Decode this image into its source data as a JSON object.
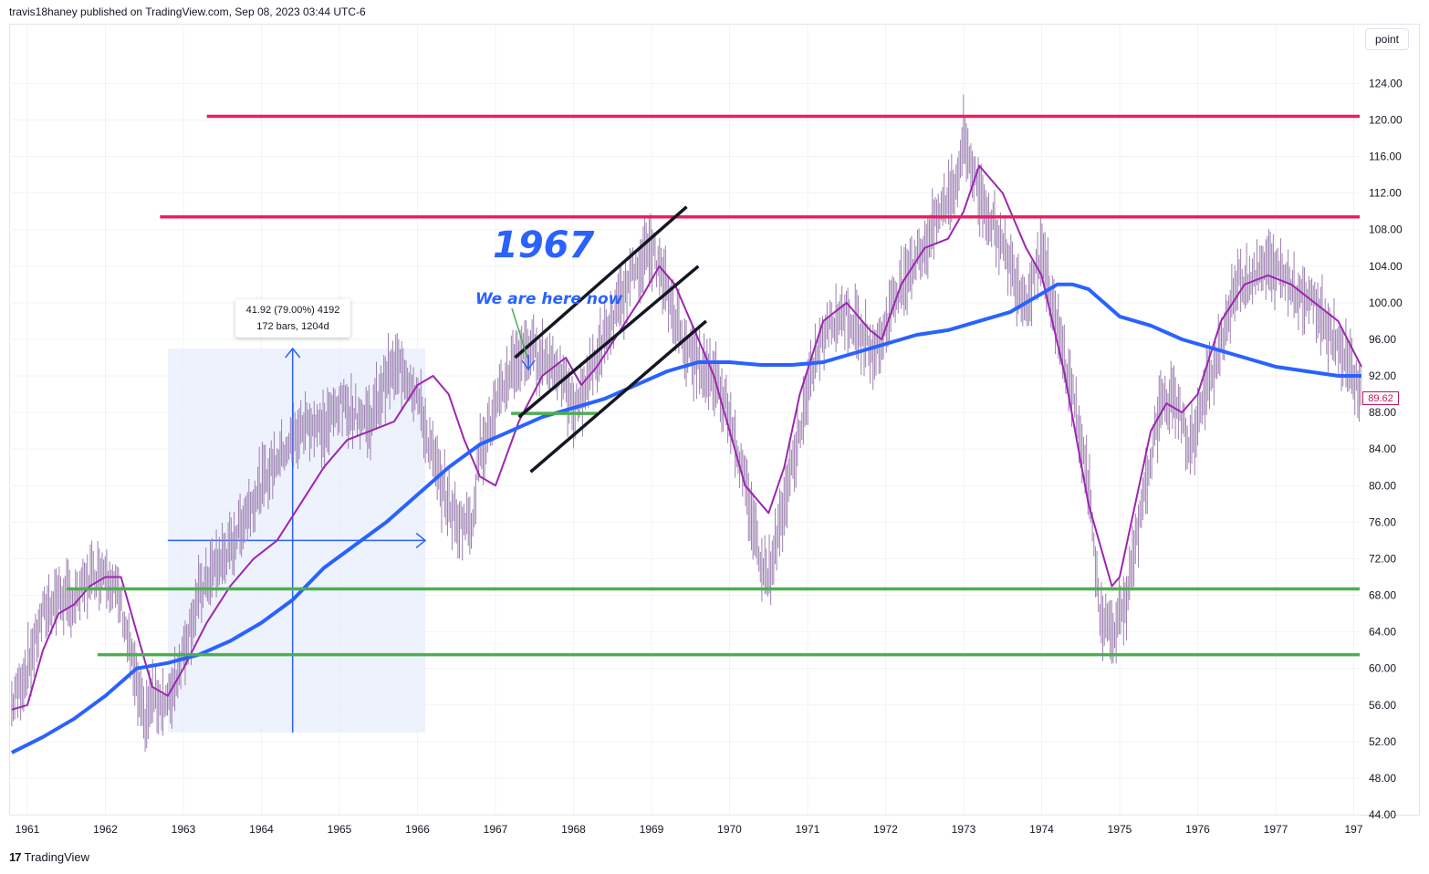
{
  "header": {
    "publisher": "travis18haney published on TradingView.com, Sep 08, 2023 03:44 UTC-6"
  },
  "toolbar": {
    "scale_mode": "point"
  },
  "footer": {
    "brand": "TradingView",
    "logo_icon": "tradingview-logo-icon"
  },
  "annotations": {
    "year_label": "1967",
    "we_are_here": "We are here now",
    "measure_line1": "41.92 (79.00%) 4192",
    "measure_line2": "172 bars, 1204d"
  },
  "last_price": "89.62",
  "colors": {
    "resistance": "#e91e63",
    "support": "#4caf50",
    "ma_long": "#2962ff",
    "ma_short": "#9c27b0",
    "price_bars": "#9c7fb0",
    "channel": "#131722",
    "measure_fill": "#e8eefc"
  },
  "chart_data": {
    "type": "line",
    "title": "",
    "xlabel": "",
    "ylabel": "",
    "x_tick_labels": [
      "1961",
      "1962",
      "1963",
      "1964",
      "1965",
      "1966",
      "1967",
      "1968",
      "1969",
      "1970",
      "1971",
      "1972",
      "1973",
      "1974",
      "1975",
      "1976",
      "1977",
      "197"
    ],
    "y_tick_labels": [
      "44.00",
      "48.00",
      "52.00",
      "56.00",
      "60.00",
      "64.00",
      "68.00",
      "72.00",
      "76.00",
      "80.00",
      "84.00",
      "88.00",
      "92.00",
      "96.00",
      "100.00",
      "104.00",
      "108.00",
      "112.00",
      "116.00",
      "120.00",
      "124.00"
    ],
    "ylim": [
      44,
      128
    ],
    "xlim": [
      1960.8,
      1978.1
    ],
    "grid": true,
    "horizontal_levels": [
      {
        "value": 120.4,
        "from": 1963.3,
        "kind": "resistance"
      },
      {
        "value": 109.4,
        "from": 1962.7,
        "kind": "resistance"
      },
      {
        "value": 68.7,
        "from": 1961.5,
        "kind": "support"
      },
      {
        "value": 61.5,
        "from": 1961.9,
        "kind": "support"
      },
      {
        "value": 87.9,
        "from": 1967.2,
        "to": 1968.3,
        "kind": "support"
      }
    ],
    "channel_lines": [
      {
        "x": [
          1967.25,
          1969.45
        ],
        "y": [
          94.0,
          110.5
        ]
      },
      {
        "x": [
          1967.3,
          1969.6
        ],
        "y": [
          87.5,
          104.0
        ]
      },
      {
        "x": [
          1967.45,
          1969.7
        ],
        "y": [
          81.5,
          98.0
        ]
      }
    ],
    "measure_rect": {
      "x": [
        1962.8,
        1966.1
      ],
      "y": [
        53.0,
        95.0
      ]
    },
    "measure_arrows": {
      "vertical": {
        "x": 1964.4,
        "y": [
          53.0,
          95.0
        ]
      },
      "horizontal": {
        "y": 74.0,
        "x": [
          1962.8,
          1966.1
        ]
      }
    },
    "series": [
      {
        "name": "",
        "kind": "price",
        "x": [
          1960.8,
          1961.0,
          1961.2,
          1961.4,
          1961.6,
          1961.8,
          1962.0,
          1962.2,
          1962.4,
          1962.5,
          1962.6,
          1962.8,
          1963.0,
          1963.2,
          1963.4,
          1963.6,
          1963.8,
          1964.0,
          1964.2,
          1964.4,
          1964.6,
          1964.8,
          1965.0,
          1965.2,
          1965.4,
          1965.6,
          1965.8,
          1966.0,
          1966.1,
          1966.3,
          1966.5,
          1966.7,
          1966.8,
          1967.0,
          1967.2,
          1967.4,
          1967.6,
          1967.8,
          1968.0,
          1968.2,
          1968.4,
          1968.6,
          1968.8,
          1969.0,
          1969.2,
          1969.4,
          1969.6,
          1969.8,
          1970.0,
          1970.2,
          1970.4,
          1970.5,
          1970.7,
          1970.9,
          1971.1,
          1971.3,
          1971.5,
          1971.7,
          1971.9,
          1972.1,
          1972.3,
          1972.5,
          1972.7,
          1972.9,
          1973.0,
          1973.2,
          1973.4,
          1973.6,
          1973.8,
          1974.0,
          1974.2,
          1974.4,
          1974.6,
          1974.75,
          1974.9,
          1975.1,
          1975.3,
          1975.5,
          1975.7,
          1975.9,
          1976.1,
          1976.3,
          1976.5,
          1976.7,
          1976.9,
          1977.1,
          1977.3,
          1977.5,
          1977.7,
          1977.9,
          1978.1
        ],
        "y": [
          56,
          60,
          66,
          68,
          67,
          70,
          71,
          67,
          58,
          54,
          57,
          56,
          62,
          68,
          71,
          73,
          77,
          80,
          83,
          85,
          87,
          86,
          89,
          88,
          87,
          92,
          93,
          90,
          86,
          80,
          76,
          76,
          84,
          88,
          93,
          95,
          94,
          93,
          88,
          92,
          96,
          100,
          104,
          106,
          101,
          96,
          93,
          92,
          88,
          80,
          72,
          70,
          78,
          86,
          94,
          98,
          99,
          96,
          95,
          100,
          104,
          106,
          110,
          113,
          118,
          112,
          108,
          104,
          100,
          106,
          97,
          90,
          80,
          66,
          64,
          68,
          78,
          88,
          90,
          84,
          90,
          96,
          102,
          103,
          104,
          103,
          101,
          100,
          97,
          94,
          90
        ]
      },
      {
        "name": "",
        "kind": "ma_short",
        "x": [
          1960.8,
          1961.0,
          1961.2,
          1961.4,
          1961.6,
          1961.8,
          1962.0,
          1962.2,
          1962.4,
          1962.6,
          1962.8,
          1963.0,
          1963.3,
          1963.6,
          1963.9,
          1964.2,
          1964.5,
          1964.8,
          1965.1,
          1965.4,
          1965.7,
          1966.0,
          1966.2,
          1966.4,
          1966.6,
          1966.8,
          1967.0,
          1967.3,
          1967.6,
          1967.9,
          1968.1,
          1968.3,
          1968.6,
          1968.9,
          1969.1,
          1969.3,
          1969.5,
          1969.8,
          1970.0,
          1970.2,
          1970.5,
          1970.7,
          1970.9,
          1971.2,
          1971.5,
          1971.8,
          1971.95,
          1972.2,
          1972.5,
          1972.8,
          1973.0,
          1973.2,
          1973.5,
          1973.8,
          1974.0,
          1974.3,
          1974.6,
          1974.9,
          1975.0,
          1975.2,
          1975.4,
          1975.6,
          1975.8,
          1976.0,
          1976.3,
          1976.6,
          1976.9,
          1977.2,
          1977.5,
          1977.8,
          1978.1
        ],
        "y": [
          55.5,
          56,
          62,
          66,
          67,
          69,
          70,
          70,
          64,
          58,
          57,
          60,
          65,
          69,
          72,
          74,
          78,
          82,
          85,
          86,
          87,
          91,
          92,
          90,
          85,
          81,
          80,
          87,
          92,
          94,
          91,
          93,
          97,
          101,
          104,
          102,
          98,
          92,
          86,
          80,
          77,
          82,
          90,
          98,
          100,
          97,
          96,
          102,
          106,
          107,
          110,
          115,
          112,
          106,
          103,
          92,
          78,
          69,
          70,
          78,
          86,
          89,
          88,
          90,
          98,
          102,
          103,
          102,
          100,
          98,
          93
        ],
        "color": "#9c27b0"
      },
      {
        "name": "",
        "kind": "ma_long",
        "x": [
          1960.8,
          1961.2,
          1961.6,
          1962.0,
          1962.4,
          1962.8,
          1963.2,
          1963.6,
          1964.0,
          1964.4,
          1964.8,
          1965.2,
          1965.6,
          1966.0,
          1966.4,
          1966.8,
          1967.2,
          1967.6,
          1968.0,
          1968.4,
          1968.8,
          1969.2,
          1969.6,
          1970.0,
          1970.4,
          1970.8,
          1971.2,
          1971.6,
          1972.0,
          1972.4,
          1972.8,
          1973.2,
          1973.6,
          1974.0,
          1974.2,
          1974.4,
          1974.6,
          1974.8,
          1975.0,
          1975.4,
          1975.8,
          1976.2,
          1976.6,
          1977.0,
          1977.4,
          1977.8,
          1978.1
        ],
        "y": [
          50.8,
          52.5,
          54.5,
          57,
          60,
          60.6,
          61.5,
          63,
          65,
          67.5,
          71,
          73.5,
          76,
          79,
          82,
          84.5,
          86,
          87.5,
          88.5,
          89.5,
          91,
          92.5,
          93.5,
          93.5,
          93.2,
          93.2,
          93.5,
          94.5,
          95.5,
          96.5,
          97,
          98,
          99,
          101,
          102,
          102,
          101.5,
          100,
          98.5,
          97.5,
          96,
          95,
          94,
          93,
          92.5,
          92,
          92
        ],
        "color": "#2962ff"
      }
    ]
  }
}
